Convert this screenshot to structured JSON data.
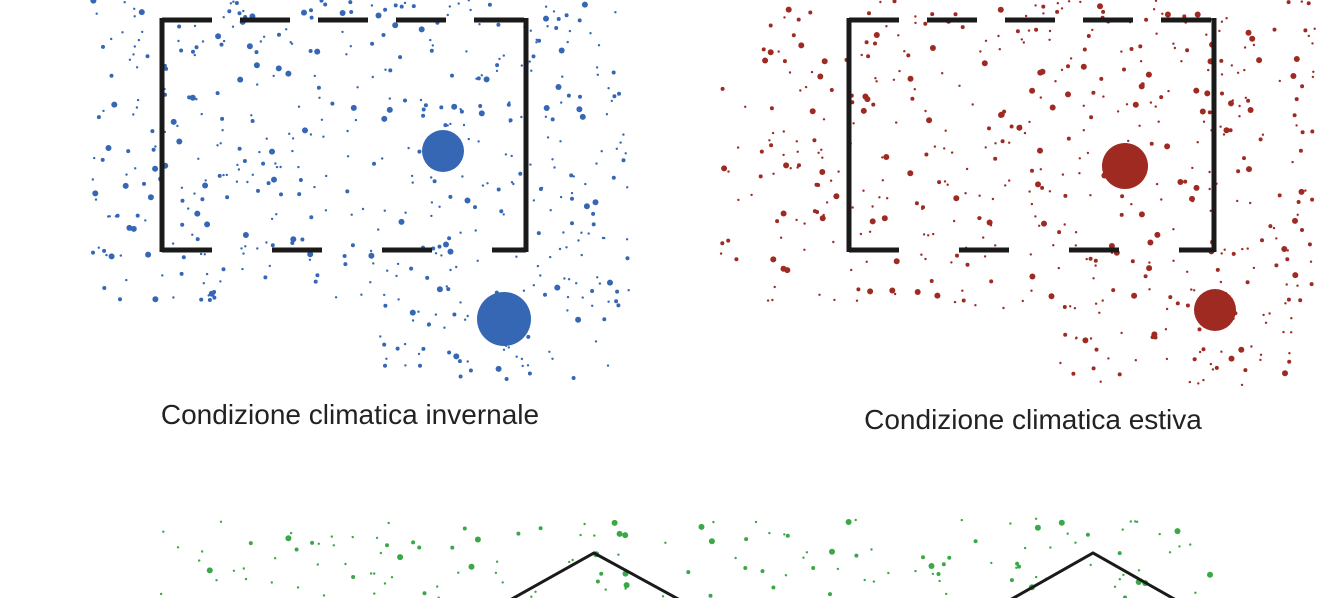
{
  "labels": {
    "winter": "Condizione climatica invernale",
    "summer": "Condizione climatica estiva"
  }
}
